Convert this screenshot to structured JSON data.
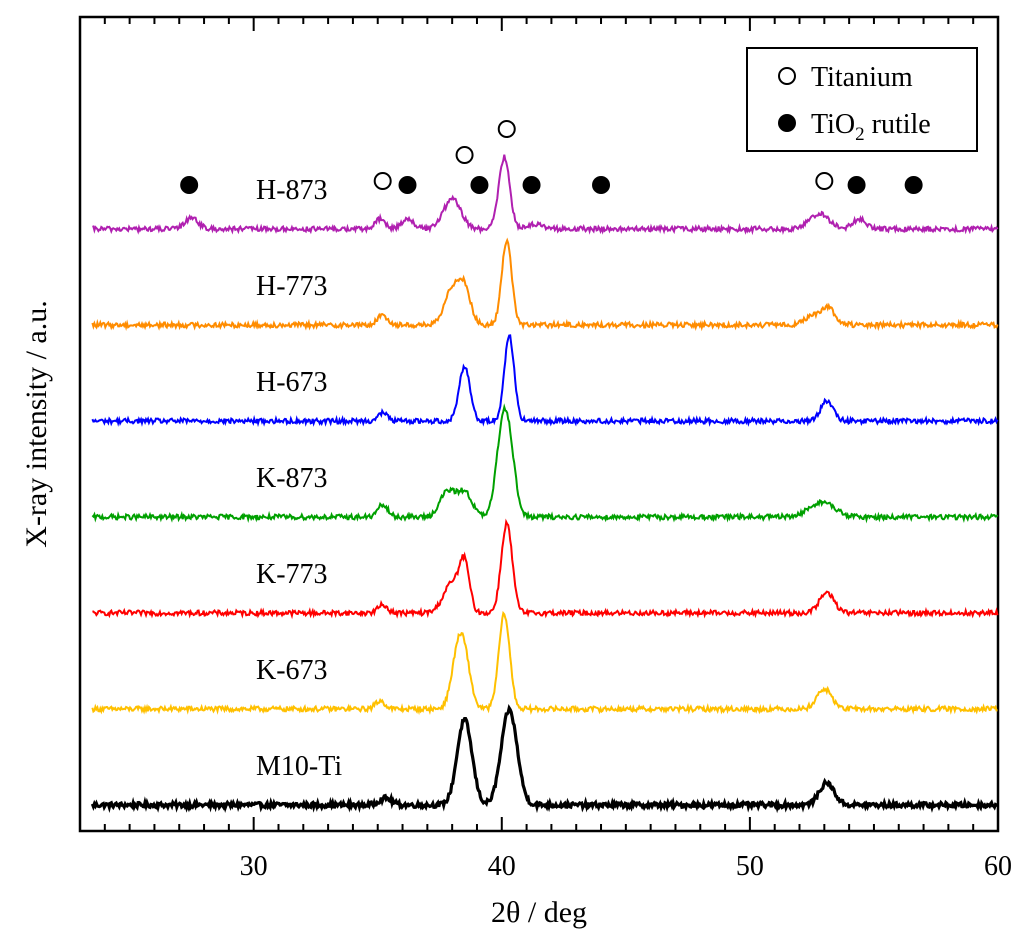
{
  "chart_data": {
    "type": "line",
    "title": "",
    "xlabel": "2θ / deg",
    "ylabel": "X-ray intensity / a.u.",
    "xlim": [
      23,
      60
    ],
    "x_ticks": [
      30,
      40,
      50,
      60
    ],
    "x_tick_labels": [
      "30",
      "40",
      "50",
      "60"
    ],
    "y_ticks_shown": false,
    "legend": {
      "position": "top-right",
      "entries": [
        {
          "marker": "open-circle",
          "label": "Titanium"
        },
        {
          "marker": "filled-circle",
          "label": "TiO",
          "subscript": "2",
          "suffix": " rutile"
        }
      ]
    },
    "series": [
      {
        "name": "M10-Ti",
        "color": "#000000",
        "baseline": 0.0,
        "peaks": [
          [
            35.3,
            0.07,
            0.25
          ],
          [
            38.5,
            0.85,
            0.3
          ],
          [
            40.3,
            0.95,
            0.32
          ],
          [
            53.1,
            0.22,
            0.3
          ]
        ]
      },
      {
        "name": "K-673",
        "color": "#ffc000",
        "baseline": 1.0,
        "peaks": [
          [
            35.1,
            0.08,
            0.2
          ],
          [
            38.2,
            0.45,
            0.25
          ],
          [
            38.5,
            0.45,
            0.25
          ],
          [
            40.1,
            0.95,
            0.22
          ],
          [
            53.0,
            0.2,
            0.3
          ]
        ]
      },
      {
        "name": "K-773",
        "color": "#ff0000",
        "baseline": 2.0,
        "peaks": [
          [
            35.2,
            0.08,
            0.2
          ],
          [
            38.0,
            0.3,
            0.35
          ],
          [
            38.5,
            0.45,
            0.2
          ],
          [
            40.2,
            0.9,
            0.22
          ],
          [
            53.1,
            0.2,
            0.3
          ]
        ]
      },
      {
        "name": "K-873",
        "color": "#00a000",
        "baseline": 3.0,
        "peaks": [
          [
            35.2,
            0.12,
            0.2
          ],
          [
            37.8,
            0.25,
            0.3
          ],
          [
            38.5,
            0.25,
            0.3
          ],
          [
            40.0,
            0.7,
            0.25
          ],
          [
            40.3,
            0.6,
            0.25
          ],
          [
            52.9,
            0.15,
            0.5
          ]
        ]
      },
      {
        "name": "H-673",
        "color": "#0000ff",
        "baseline": 4.0,
        "peaks": [
          [
            35.2,
            0.08,
            0.2
          ],
          [
            38.5,
            0.55,
            0.22
          ],
          [
            40.3,
            0.85,
            0.2
          ],
          [
            53.1,
            0.2,
            0.25
          ]
        ]
      },
      {
        "name": "H-773",
        "color": "#ff8c00",
        "baseline": 5.0,
        "peaks": [
          [
            35.2,
            0.1,
            0.2
          ],
          [
            38.0,
            0.35,
            0.3
          ],
          [
            38.5,
            0.35,
            0.25
          ],
          [
            40.2,
            0.85,
            0.2
          ],
          [
            52.8,
            0.12,
            0.45
          ],
          [
            53.2,
            0.1,
            0.2
          ]
        ]
      },
      {
        "name": "H-873",
        "color": "#b020b0",
        "baseline": 6.0,
        "peaks": [
          [
            27.5,
            0.12,
            0.25
          ],
          [
            35.1,
            0.1,
            0.2
          ],
          [
            36.2,
            0.1,
            0.25
          ],
          [
            38.0,
            0.3,
            0.35
          ],
          [
            40.1,
            0.72,
            0.22
          ],
          [
            41.3,
            0.05,
            0.3
          ],
          [
            52.8,
            0.15,
            0.4
          ],
          [
            54.4,
            0.1,
            0.25
          ]
        ]
      }
    ],
    "markers": {
      "titanium": [
        {
          "x": 35.2,
          "level": 0
        },
        {
          "x": 38.5,
          "level": 1
        },
        {
          "x": 40.2,
          "level": 2
        },
        {
          "x": 53.0,
          "level": 0
        }
      ],
      "tio2_rutile": [
        27.4,
        36.2,
        39.1,
        41.2,
        44.0,
        54.3,
        56.6
      ]
    }
  }
}
